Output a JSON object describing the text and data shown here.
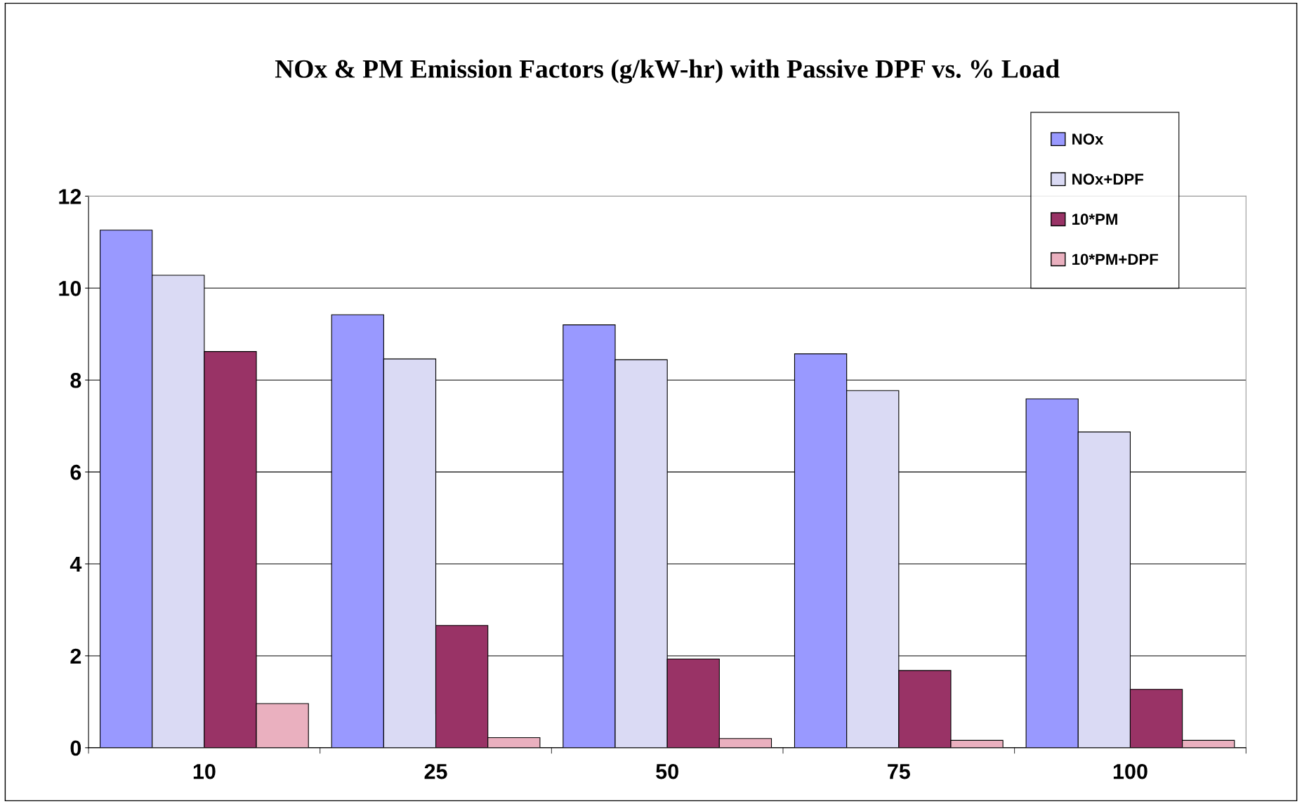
{
  "chart_data": {
    "type": "bar",
    "title": "NOx & PM Emission Factors (g/kW-hr) with Passive DPF vs. % Load",
    "categories": [
      "10",
      "25",
      "50",
      "75",
      "100"
    ],
    "series": [
      {
        "name": "NOx",
        "color": "#9999ff",
        "values": [
          11.26,
          9.42,
          9.2,
          8.57,
          7.59
        ]
      },
      {
        "name": "NOx+DPF",
        "color": "#dadaf4",
        "values": [
          10.28,
          8.46,
          8.44,
          7.77,
          6.87
        ]
      },
      {
        "name": "10*PM",
        "color": "#993366",
        "values": [
          8.62,
          2.66,
          1.93,
          1.68,
          1.27
        ]
      },
      {
        "name": "10*PM+DPF",
        "color": "#eab0bf",
        "values": [
          0.96,
          0.22,
          0.2,
          0.16,
          0.16
        ]
      }
    ],
    "ylim": [
      0,
      12
    ],
    "yticks": [
      0,
      2,
      4,
      6,
      8,
      10,
      12
    ],
    "grid": "y",
    "legend": "top right"
  }
}
